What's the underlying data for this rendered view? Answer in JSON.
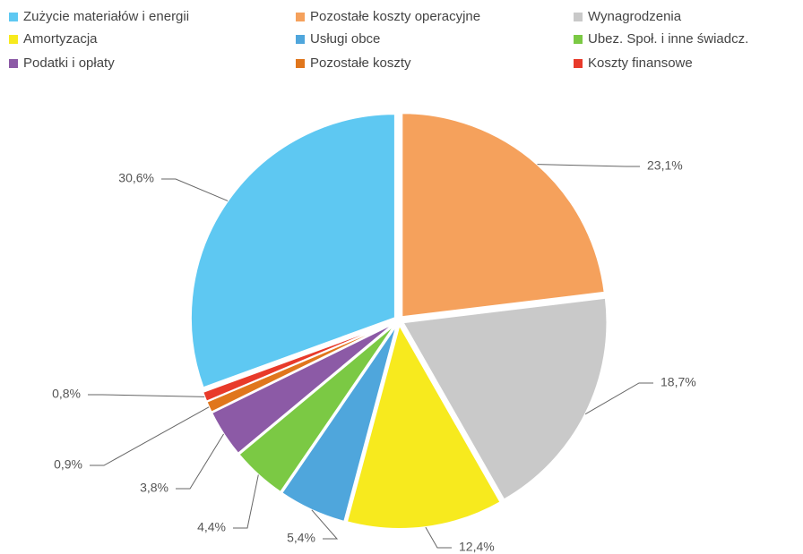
{
  "chart_data": {
    "type": "pie",
    "categories": [
      "Zużycie materiałów i energii",
      "Pozostałe koszty operacyjne",
      "Wynagrodzenia",
      "Amortyzacja",
      "Usługi obce",
      "Ubez. Społ. i inne świadcz.",
      "Podatki i opłaty",
      "Pozostałe koszty",
      "Koszty finansowe"
    ],
    "values": [
      30.6,
      23.1,
      18.7,
      12.4,
      5.4,
      4.4,
      3.8,
      0.9,
      0.8
    ],
    "value_labels": [
      "30,6%",
      "23,1%",
      "18,7%",
      "12,4%",
      "5,4%",
      "4,4%",
      "3,8%",
      "0,9%",
      "0,8%"
    ],
    "colors": [
      "#5ec8f2",
      "#f5a15c",
      "#c9c9c9",
      "#f7ea1e",
      "#4fa6dc",
      "#7bc944",
      "#8c5aa6",
      "#e0761c",
      "#e83a2a"
    ],
    "legend": "top"
  }
}
